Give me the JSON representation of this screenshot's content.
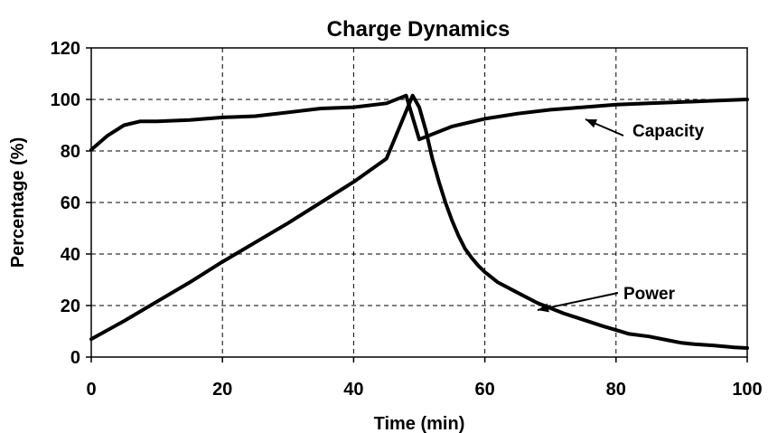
{
  "chart_data": {
    "type": "line",
    "title": "Charge Dynamics",
    "xlabel": "Time (min)",
    "ylabel": "Percentage (%)",
    "xlim": [
      0,
      100
    ],
    "ylim": [
      0,
      120
    ],
    "xticks": [
      "0",
      "20",
      "40",
      "60",
      "80",
      "100"
    ],
    "yticks": [
      "0",
      "20",
      "40",
      "60",
      "80",
      "100",
      "120"
    ],
    "grid": true,
    "series": [
      {
        "name": "Capacity",
        "x": [
          0,
          2.5,
          5,
          7.5,
          10,
          15,
          20,
          25,
          30,
          35,
          40,
          45,
          48,
          50,
          55,
          60,
          65,
          70,
          75,
          80,
          85,
          90,
          95,
          100
        ],
        "y": [
          80.5,
          86,
          90,
          91.5,
          91.5,
          92,
          93,
          93.5,
          95,
          96.5,
          97,
          98.5,
          101.5,
          84.5,
          89.5,
          92.5,
          94.5,
          96,
          97,
          98,
          98.5,
          99,
          99.5,
          100
        ]
      },
      {
        "name": "Power",
        "x": [
          0,
          5,
          10,
          15,
          20,
          25,
          30,
          35,
          40,
          45,
          49,
          50,
          51,
          52,
          53,
          54,
          55,
          56,
          57,
          58,
          59,
          60,
          62,
          65,
          68,
          70,
          72,
          75,
          78,
          80,
          82,
          85,
          88,
          90,
          92,
          95,
          98,
          100
        ],
        "y": [
          7,
          14,
          21.5,
          29,
          37,
          44.5,
          52,
          60,
          68,
          77,
          101.5,
          97,
          88,
          77,
          68,
          60,
          53,
          47,
          42,
          38.5,
          35.5,
          33,
          29,
          25,
          21,
          19,
          17,
          14.5,
          12,
          10.5,
          9,
          8,
          6.5,
          5.5,
          5,
          4.5,
          3.8,
          3.5
        ]
      }
    ],
    "annotations": [
      {
        "text": "Capacity",
        "target_series": "Capacity",
        "target_x": 75,
        "target_y": 97
      },
      {
        "text": "Power",
        "target_series": "Power",
        "target_x": 63,
        "target_y": 19
      }
    ]
  }
}
